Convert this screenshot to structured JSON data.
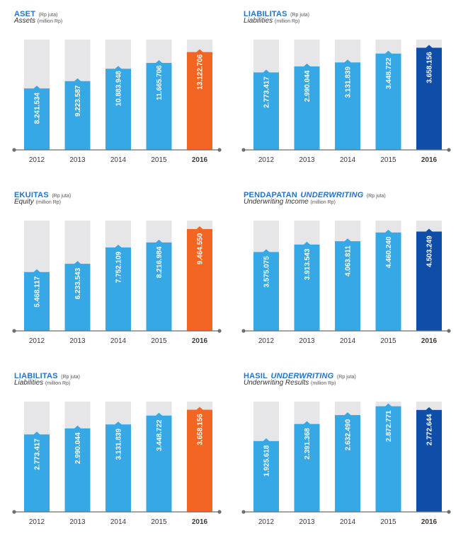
{
  "chart_data": [
    {
      "type": "bar",
      "title": "ASET",
      "title_unit": "(Rp juta)",
      "subtitle": "Assets",
      "subtitle_unit": "(million Rp)",
      "categories": [
        "2012",
        "2013",
        "2014",
        "2015",
        "2016"
      ],
      "values": [
        8241534,
        9223587,
        10883948,
        11665706,
        13122706
      ],
      "value_labels": [
        "8.241.534",
        "9.223.587",
        "10.883.948",
        "11.665.706",
        "13.122.706"
      ],
      "ylim": [
        0,
        14800000
      ],
      "highlight_color": "#f26522"
    },
    {
      "type": "bar",
      "title": "LIABILITAS",
      "title_unit": "(Rp juta)",
      "subtitle": "Liabilities",
      "subtitle_unit": "(million Rp)",
      "categories": [
        "2012",
        "2013",
        "2014",
        "2015",
        "2016"
      ],
      "values": [
        2773417,
        2990044,
        3131839,
        3448722,
        3658156
      ],
      "value_labels": [
        "2.773.417",
        "2.990.044",
        "3.131.839",
        "3.448.722",
        "3.658.156"
      ],
      "ylim": [
        0,
        3950000
      ],
      "highlight_color": "#0f4ea8"
    },
    {
      "type": "bar",
      "title": "EKUITAS",
      "title_unit": "(Rp juta)",
      "subtitle": "Equity",
      "subtitle_unit": "(million Rp)",
      "categories": [
        "2012",
        "2013",
        "2014",
        "2015",
        "2016"
      ],
      "values": [
        5468117,
        6233543,
        7752109,
        8216984,
        9464550
      ],
      "value_labels": [
        "5.468.117",
        "6.233.543",
        "7.752.109",
        "8.216.984",
        "9.464.550"
      ],
      "ylim": [
        0,
        10250000
      ],
      "highlight_color": "#f26522"
    },
    {
      "type": "bar",
      "title": "PENDAPATAN",
      "title_em": "UNDERWRITING",
      "title_unit": "(Rp juta)",
      "subtitle": "Underwriting Income",
      "subtitle_unit": "(million Rp)",
      "categories": [
        "2012",
        "2013",
        "2014",
        "2015",
        "2016"
      ],
      "values": [
        3575075,
        3913543,
        4063811,
        4460240,
        4503249
      ],
      "value_labels": [
        "3.575.075",
        "3.913.543",
        "4.063.811",
        "4.460.240",
        "4.503.249"
      ],
      "ylim": [
        0,
        5000000
      ],
      "highlight_color": "#0f4ea8"
    },
    {
      "type": "bar",
      "title": "LIABILITAS",
      "title_unit": "(Rp juta)",
      "subtitle": "Liabilities",
      "subtitle_unit": "(million Rp)",
      "categories": [
        "2012",
        "2013",
        "2014",
        "2015",
        "2016"
      ],
      "values": [
        2773417,
        2990044,
        3131839,
        3448722,
        3658156
      ],
      "value_labels": [
        "2.773.417",
        "2.990.044",
        "3.131.839",
        "3.448.722",
        "3.658.156"
      ],
      "ylim": [
        0,
        3950000
      ],
      "highlight_color": "#f26522"
    },
    {
      "type": "bar",
      "title": "HASIL",
      "title_em": "UNDERWRITING",
      "title_unit": "(Rp juta)",
      "subtitle": "Underwriting Results",
      "subtitle_unit": "(million Rp)",
      "categories": [
        "2012",
        "2013",
        "2014",
        "2015",
        "2016"
      ],
      "values": [
        1925618,
        2391368,
        2632490,
        2872771,
        2772644
      ],
      "value_labels": [
        "1.925.618",
        "2.391.368",
        "2.632.490",
        "2.872.771",
        "2.772.644"
      ],
      "ylim": [
        0,
        3000000
      ],
      "highlight_color": "#0f4ea8"
    }
  ],
  "colors": {
    "bar": "#35a8e5",
    "track": "#e6e6e8",
    "axis": "#6d6e71",
    "title": "#2474c6"
  }
}
